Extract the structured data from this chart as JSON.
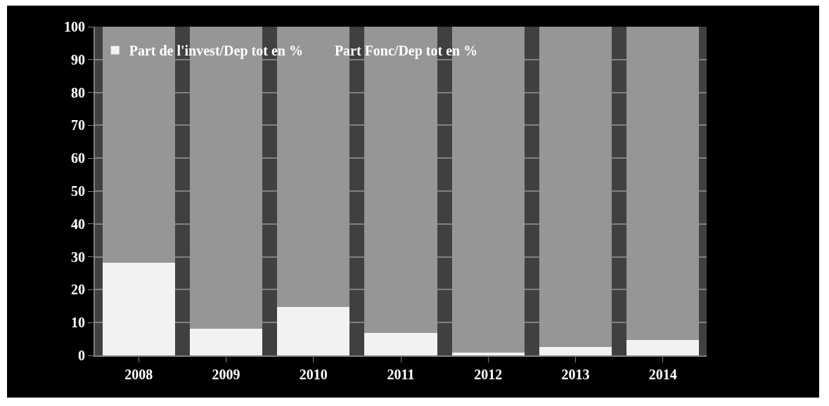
{
  "chart_data": {
    "type": "bar",
    "stacked": true,
    "categories": [
      "2008",
      "2009",
      "2010",
      "2011",
      "2012",
      "2013",
      "2014"
    ],
    "series": [
      {
        "name": "Part de l'invest/Dep tot en %",
        "color": "#f2f2f2",
        "values": [
          28.3,
          8.2,
          14.8,
          6.8,
          0.9,
          2.5,
          4.6
        ]
      },
      {
        "name": "Part Fonc/Dep tot en %",
        "color": "#969696",
        "values": [
          71.7,
          91.8,
          85.2,
          93.2,
          99.1,
          97.5,
          95.4
        ]
      }
    ],
    "ylim": [
      0,
      100
    ],
    "yticks": [
      0,
      10,
      20,
      30,
      40,
      50,
      60,
      70,
      80,
      90,
      100
    ],
    "grid": "y",
    "legend": "top left"
  }
}
